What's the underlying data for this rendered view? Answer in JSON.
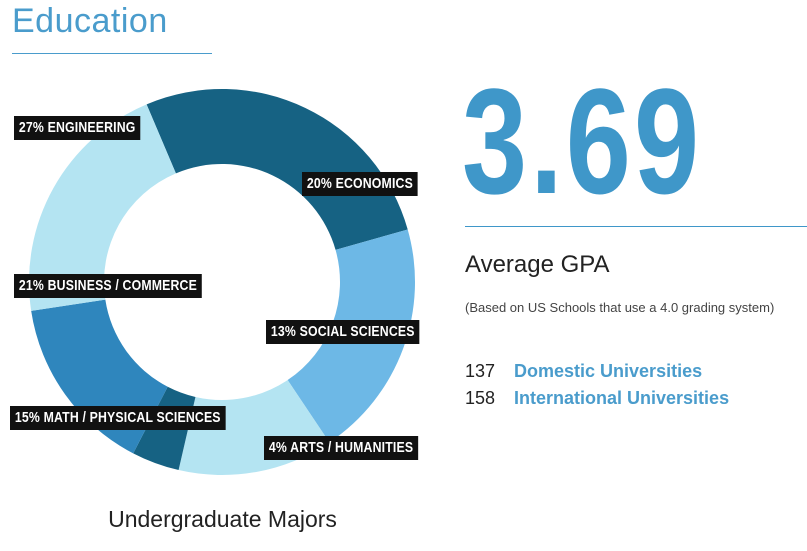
{
  "page": {
    "section_title": "Education"
  },
  "chart_data": {
    "type": "pie",
    "variant": "donut",
    "title": "",
    "caption": "Undergraduate Majors",
    "slices": [
      {
        "label": "27% ENGINEERING",
        "category": "ENGINEERING",
        "value": 27,
        "color": "#166283"
      },
      {
        "label": "20% ECONOMICS",
        "category": "ECONOMICS",
        "value": 20,
        "color": "#6db8e6"
      },
      {
        "label": "13% SOCIAL SCIENCES",
        "category": "SOCIAL SCIENCES",
        "value": 13,
        "color": "#b4e4f2"
      },
      {
        "label": "4% ARTS / HUMANITIES",
        "category": "ARTS / HUMANITIES",
        "value": 4,
        "color": "#166283"
      },
      {
        "label": "15% MATH / PHYSICAL SCIENCES",
        "category": "MATH / PHYSICAL SCIENCES",
        "value": 15,
        "color": "#2f86bd"
      },
      {
        "label": "21% BUSINESS / COMMERCE",
        "category": "BUSINESS / COMMERCE",
        "value": 21,
        "color": "#b4e4f2"
      }
    ]
  },
  "gpa": {
    "value": "3.69",
    "label": "Average GPA",
    "note": "(Based on US Schools that use a 4.0 grading system)"
  },
  "universities": [
    {
      "count": "137",
      "label": "Domestic Universities"
    },
    {
      "count": "158",
      "label": "International Universities"
    }
  ],
  "colors": {
    "accent": "#3f97c9",
    "label_bg": "#111111"
  }
}
